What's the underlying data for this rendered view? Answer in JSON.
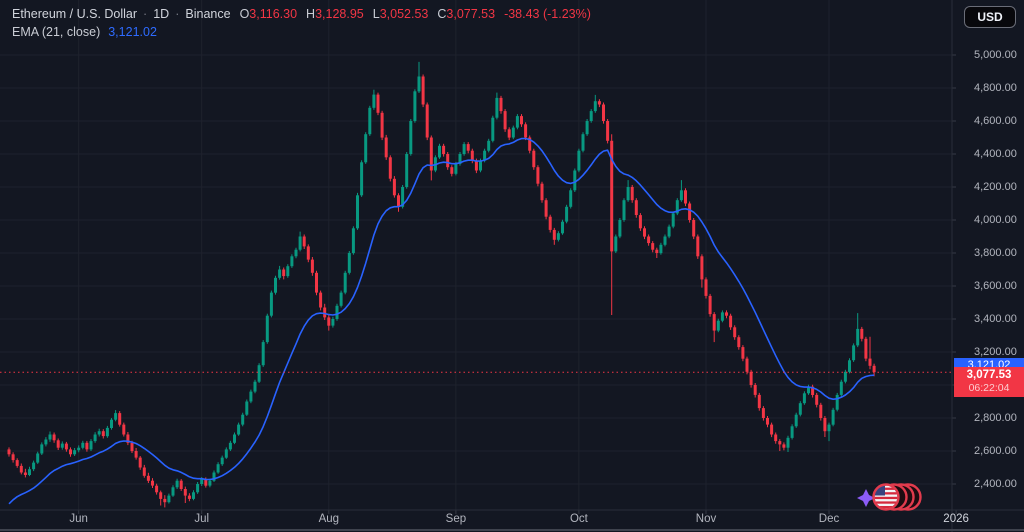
{
  "header": {
    "symbol_title": "Ethereum / U.S. Dollar",
    "sep1": "·",
    "timeframe": "1D",
    "sep2": "·",
    "exchange": "Binance",
    "ohlc": {
      "o_label": "O",
      "o": "3,116.30",
      "h_label": "H",
      "h": "3,128.95",
      "l_label": "L",
      "l": "3,052.53",
      "c_label": "C",
      "c": "3,077.53"
    },
    "change": "-38.43 (-1.23%)",
    "indicator": {
      "label": "EMA (21, close)",
      "value": "3,121.02"
    }
  },
  "toolbar": {
    "currency_button": "USD"
  },
  "price_tags": {
    "ema": {
      "text": "3,121.02",
      "color": "#2962ff"
    },
    "last": {
      "price": "3,077.53",
      "countdown": "06:22:04",
      "color": "#f23645"
    }
  },
  "chart_data": {
    "type": "candlestick",
    "title": "Ethereum / U.S. Dollar · 1D · Binance",
    "last_bar": {
      "open": 3116.3,
      "high": 3128.95,
      "low": 3052.53,
      "close": 3077.53,
      "change": -38.43,
      "change_pct": -1.23
    },
    "ema": {
      "period": 21,
      "source": "close",
      "value": 3121.02,
      "first_value": 2250,
      "color": "#2962ff"
    },
    "current_price_line": 3077.53,
    "y_axis": {
      "min": 2400,
      "max": 5000,
      "step": 200,
      "labels": [
        "5,000.00",
        "4,800.00",
        "4,600.00",
        "4,400.00",
        "4,200.00",
        "4,000.00",
        "3,800.00",
        "3,600.00",
        "3,400.00",
        "3,200.00",
        "3,000.00",
        "2,800.00",
        "2,600.00",
        "2,400.00"
      ]
    },
    "x_axis": {
      "ticks": [
        {
          "label": "Jun",
          "index": 17
        },
        {
          "label": "Jul",
          "index": 47
        },
        {
          "label": "Aug",
          "index": 78
        },
        {
          "label": "Sep",
          "index": 109
        },
        {
          "label": "Oct",
          "index": 139
        },
        {
          "label": "Nov",
          "index": 170
        },
        {
          "label": "Dec",
          "index": 200
        },
        {
          "label": "2026",
          "index": 231,
          "year": true
        }
      ]
    },
    "colors": {
      "up": "#089981",
      "down": "#f23645",
      "grid": "#1e222d",
      "bg": "#131722",
      "axis_text": "#b2b5be",
      "ema_line": "#2962ff",
      "price_line": "#f23645",
      "separator": "#2a2e39"
    },
    "candles": [
      [
        2610,
        2622,
        2566,
        2580
      ],
      [
        2580,
        2592,
        2530,
        2545
      ],
      [
        2545,
        2556,
        2498,
        2510
      ],
      [
        2510,
        2524,
        2458,
        2470
      ],
      [
        2470,
        2492,
        2440,
        2455
      ],
      [
        2455,
        2505,
        2448,
        2490
      ],
      [
        2490,
        2542,
        2478,
        2530
      ],
      [
        2530,
        2596,
        2522,
        2585
      ],
      [
        2585,
        2652,
        2576,
        2640
      ],
      [
        2640,
        2684,
        2628,
        2670
      ],
      [
        2670,
        2718,
        2655,
        2700
      ],
      [
        2700,
        2712,
        2650,
        2665
      ],
      [
        2665,
        2676,
        2606,
        2620
      ],
      [
        2620,
        2658,
        2608,
        2645
      ],
      [
        2645,
        2655,
        2596,
        2610
      ],
      [
        2610,
        2622,
        2565,
        2580
      ],
      [
        2580,
        2618,
        2570,
        2605
      ],
      [
        2605,
        2634,
        2592,
        2620
      ],
      [
        2620,
        2662,
        2610,
        2650
      ],
      [
        2650,
        2661,
        2596,
        2610
      ],
      [
        2610,
        2672,
        2600,
        2660
      ],
      [
        2660,
        2714,
        2650,
        2700
      ],
      [
        2700,
        2735,
        2688,
        2720
      ],
      [
        2720,
        2732,
        2676,
        2690
      ],
      [
        2690,
        2752,
        2680,
        2740
      ],
      [
        2740,
        2800,
        2730,
        2790
      ],
      [
        2790,
        2848,
        2780,
        2830
      ],
      [
        2830,
        2842,
        2748,
        2760
      ],
      [
        2760,
        2772,
        2688,
        2700
      ],
      [
        2700,
        2715,
        2636,
        2650
      ],
      [
        2650,
        2662,
        2588,
        2600
      ],
      [
        2600,
        2618,
        2548,
        2560
      ],
      [
        2560,
        2570,
        2486,
        2500
      ],
      [
        2500,
        2516,
        2438,
        2450
      ],
      [
        2450,
        2468,
        2406,
        2420
      ],
      [
        2420,
        2436,
        2376,
        2390
      ],
      [
        2390,
        2402,
        2336,
        2350
      ],
      [
        2350,
        2360,
        2270,
        2310
      ],
      [
        2310,
        2332,
        2258,
        2290
      ],
      [
        2290,
        2342,
        2282,
        2330
      ],
      [
        2330,
        2392,
        2322,
        2380
      ],
      [
        2380,
        2432,
        2370,
        2420
      ],
      [
        2420,
        2430,
        2358,
        2370
      ],
      [
        2370,
        2384,
        2285,
        2330
      ],
      [
        2330,
        2344,
        2296,
        2310
      ],
      [
        2310,
        2362,
        2302,
        2350
      ],
      [
        2350,
        2412,
        2340,
        2400
      ],
      [
        2400,
        2442,
        2388,
        2430
      ],
      [
        2430,
        2440,
        2378,
        2390
      ],
      [
        2390,
        2432,
        2380,
        2420
      ],
      [
        2420,
        2482,
        2412,
        2470
      ],
      [
        2470,
        2532,
        2462,
        2520
      ],
      [
        2520,
        2572,
        2510,
        2560
      ],
      [
        2560,
        2622,
        2552,
        2610
      ],
      [
        2610,
        2662,
        2600,
        2650
      ],
      [
        2650,
        2712,
        2642,
        2700
      ],
      [
        2700,
        2772,
        2692,
        2760
      ],
      [
        2760,
        2832,
        2750,
        2820
      ],
      [
        2820,
        2912,
        2812,
        2900
      ],
      [
        2900,
        2972,
        2890,
        2960
      ],
      [
        2960,
        3032,
        2950,
        3020
      ],
      [
        3020,
        3132,
        3012,
        3120
      ],
      [
        3120,
        3272,
        3110,
        3260
      ],
      [
        3260,
        3432,
        3250,
        3420
      ],
      [
        3420,
        3572,
        3410,
        3560
      ],
      [
        3560,
        3662,
        3548,
        3650
      ],
      [
        3650,
        3722,
        3638,
        3700
      ],
      [
        3700,
        3712,
        3640,
        3660
      ],
      [
        3660,
        3732,
        3650,
        3720
      ],
      [
        3720,
        3792,
        3710,
        3780
      ],
      [
        3780,
        3832,
        3768,
        3820
      ],
      [
        3820,
        3930,
        3810,
        3900
      ],
      [
        3900,
        3912,
        3824,
        3840
      ],
      [
        3840,
        3852,
        3744,
        3760
      ],
      [
        3760,
        3776,
        3662,
        3680
      ],
      [
        3680,
        3692,
        3544,
        3560
      ],
      [
        3560,
        3572,
        3452,
        3470
      ],
      [
        3470,
        3492,
        3394,
        3410
      ],
      [
        3410,
        3424,
        3330,
        3360
      ],
      [
        3360,
        3414,
        3348,
        3400
      ],
      [
        3400,
        3492,
        3390,
        3480
      ],
      [
        3480,
        3572,
        3470,
        3560
      ],
      [
        3560,
        3692,
        3550,
        3680
      ],
      [
        3680,
        3812,
        3670,
        3800
      ],
      [
        3800,
        3962,
        3790,
        3950
      ],
      [
        3950,
        4164,
        3940,
        4150
      ],
      [
        4150,
        4362,
        4140,
        4350
      ],
      [
        4350,
        4532,
        4340,
        4520
      ],
      [
        4520,
        4692,
        4510,
        4680
      ],
      [
        4680,
        4790,
        4668,
        4760
      ],
      [
        4760,
        4772,
        4636,
        4650
      ],
      [
        4650,
        4662,
        4484,
        4500
      ],
      [
        4500,
        4516,
        4364,
        4380
      ],
      [
        4380,
        4392,
        4234,
        4250
      ],
      [
        4250,
        4266,
        4136,
        4150
      ],
      [
        4150,
        4162,
        4050,
        4080
      ],
      [
        4080,
        4212,
        4070,
        4200
      ],
      [
        4200,
        4412,
        4190,
        4400
      ],
      [
        4400,
        4612,
        4390,
        4600
      ],
      [
        4600,
        4792,
        4590,
        4780
      ],
      [
        4780,
        4958,
        4770,
        4870
      ],
      [
        4870,
        4882,
        4684,
        4700
      ],
      [
        4700,
        4712,
        4484,
        4500
      ],
      [
        4500,
        4512,
        4240,
        4300
      ],
      [
        4300,
        4392,
        4290,
        4380
      ],
      [
        4380,
        4462,
        4370,
        4450
      ],
      [
        4450,
        4462,
        4384,
        4400
      ],
      [
        4400,
        4412,
        4304,
        4320
      ],
      [
        4320,
        4332,
        4264,
        4280
      ],
      [
        4280,
        4352,
        4270,
        4340
      ],
      [
        4340,
        4412,
        4330,
        4400
      ],
      [
        4400,
        4472,
        4390,
        4460
      ],
      [
        4460,
        4472,
        4404,
        4420
      ],
      [
        4420,
        4432,
        4344,
        4360
      ],
      [
        4360,
        4372,
        4284,
        4300
      ],
      [
        4300,
        4372,
        4290,
        4360
      ],
      [
        4360,
        4432,
        4350,
        4420
      ],
      [
        4420,
        4492,
        4410,
        4480
      ],
      [
        4480,
        4632,
        4470,
        4620
      ],
      [
        4620,
        4772,
        4610,
        4740
      ],
      [
        4740,
        4752,
        4644,
        4660
      ],
      [
        4660,
        4672,
        4534,
        4550
      ],
      [
        4550,
        4562,
        4484,
        4500
      ],
      [
        4500,
        4572,
        4490,
        4560
      ],
      [
        4560,
        4642,
        4550,
        4630
      ],
      [
        4630,
        4642,
        4564,
        4580
      ],
      [
        4580,
        4592,
        4484,
        4500
      ],
      [
        4500,
        4512,
        4404,
        4420
      ],
      [
        4420,
        4432,
        4304,
        4320
      ],
      [
        4320,
        4332,
        4204,
        4220
      ],
      [
        4220,
        4232,
        4104,
        4120
      ],
      [
        4120,
        4132,
        4004,
        4020
      ],
      [
        4020,
        4032,
        3924,
        3940
      ],
      [
        3940,
        3952,
        3850,
        3880
      ],
      [
        3880,
        3932,
        3870,
        3920
      ],
      [
        3920,
        4002,
        3910,
        3990
      ],
      [
        3990,
        4092,
        3980,
        4080
      ],
      [
        4080,
        4192,
        4070,
        4180
      ],
      [
        4180,
        4312,
        4170,
        4300
      ],
      [
        4300,
        4432,
        4290,
        4420
      ],
      [
        4420,
        4532,
        4410,
        4520
      ],
      [
        4520,
        4612,
        4510,
        4600
      ],
      [
        4600,
        4672,
        4590,
        4660
      ],
      [
        4660,
        4758,
        4650,
        4720
      ],
      [
        4720,
        4732,
        4684,
        4700
      ],
      [
        4700,
        4712,
        4584,
        4600
      ],
      [
        4600,
        4612,
        4464,
        4480
      ],
      [
        4480,
        4520,
        3424,
        3810
      ],
      [
        3810,
        3912,
        3800,
        3900
      ],
      [
        3900,
        4012,
        3890,
        4000
      ],
      [
        4000,
        4132,
        3990,
        4120
      ],
      [
        4120,
        4242,
        4110,
        4200
      ],
      [
        4200,
        4212,
        4104,
        4120
      ],
      [
        4120,
        4132,
        4014,
        4030
      ],
      [
        4030,
        4042,
        3934,
        3950
      ],
      [
        3950,
        3962,
        3884,
        3900
      ],
      [
        3900,
        3912,
        3844,
        3860
      ],
      [
        3860,
        3872,
        3804,
        3820
      ],
      [
        3820,
        3832,
        3770,
        3800
      ],
      [
        3800,
        3862,
        3790,
        3850
      ],
      [
        3850,
        3912,
        3840,
        3900
      ],
      [
        3900,
        3972,
        3890,
        3960
      ],
      [
        3960,
        4052,
        3950,
        4040
      ],
      [
        4040,
        4132,
        4030,
        4120
      ],
      [
        4120,
        4242,
        4110,
        4180
      ],
      [
        4180,
        4192,
        4084,
        4100
      ],
      [
        4100,
        4112,
        3984,
        4000
      ],
      [
        4000,
        4012,
        3884,
        3900
      ],
      [
        3900,
        3912,
        3764,
        3780
      ],
      [
        3780,
        3792,
        3590,
        3640
      ],
      [
        3640,
        3652,
        3524,
        3540
      ],
      [
        3540,
        3552,
        3414,
        3430
      ],
      [
        3430,
        3442,
        3260,
        3330
      ],
      [
        3330,
        3402,
        3320,
        3390
      ],
      [
        3390,
        3452,
        3380,
        3440
      ],
      [
        3440,
        3452,
        3404,
        3420
      ],
      [
        3420,
        3432,
        3334,
        3350
      ],
      [
        3350,
        3362,
        3274,
        3290
      ],
      [
        3290,
        3302,
        3214,
        3230
      ],
      [
        3230,
        3242,
        3144,
        3160
      ],
      [
        3160,
        3172,
        3064,
        3080
      ],
      [
        3080,
        3092,
        2984,
        3000
      ],
      [
        3000,
        3012,
        2924,
        2940
      ],
      [
        2940,
        2952,
        2844,
        2860
      ],
      [
        2860,
        2872,
        2784,
        2800
      ],
      [
        2800,
        2812,
        2744,
        2760
      ],
      [
        2760,
        2772,
        2684,
        2700
      ],
      [
        2700,
        2712,
        2644,
        2660
      ],
      [
        2660,
        2672,
        2600,
        2640
      ],
      [
        2640,
        2652,
        2604,
        2620
      ],
      [
        2620,
        2692,
        2594,
        2680
      ],
      [
        2680,
        2762,
        2670,
        2750
      ],
      [
        2750,
        2832,
        2740,
        2820
      ],
      [
        2820,
        2902,
        2810,
        2890
      ],
      [
        2890,
        2962,
        2880,
        2950
      ],
      [
        2950,
        3002,
        2940,
        2990
      ],
      [
        2990,
        3002,
        2924,
        2940
      ],
      [
        2940,
        2952,
        2864,
        2880
      ],
      [
        2880,
        2892,
        2784,
        2800
      ],
      [
        2800,
        2812,
        2685,
        2720
      ],
      [
        2720,
        2772,
        2660,
        2760
      ],
      [
        2760,
        2862,
        2750,
        2850
      ],
      [
        2850,
        2952,
        2840,
        2940
      ],
      [
        2940,
        3032,
        2930,
        3020
      ],
      [
        3020,
        3092,
        3010,
        3080
      ],
      [
        3080,
        3162,
        3070,
        3150
      ],
      [
        3150,
        3252,
        3140,
        3240
      ],
      [
        3240,
        3436,
        3230,
        3340
      ],
      [
        3340,
        3352,
        3264,
        3280
      ],
      [
        3280,
        3292,
        3144,
        3160
      ],
      [
        3160,
        3292,
        3096,
        3116.3
      ],
      [
        3116.3,
        3128.95,
        3052.53,
        3077.53
      ]
    ]
  },
  "decor": {
    "sticker": "usd-coin-stack-sticker",
    "sparkle_color": "#8b5cf6",
    "coin_ring_color": "#e23b4d"
  }
}
